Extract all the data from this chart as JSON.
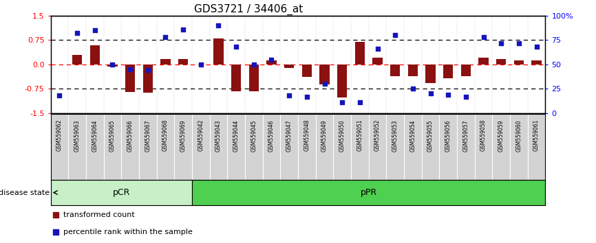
{
  "title": "GDS3721 / 34406_at",
  "samples": [
    "GSM559062",
    "GSM559063",
    "GSM559064",
    "GSM559065",
    "GSM559066",
    "GSM559067",
    "GSM559068",
    "GSM559069",
    "GSM559042",
    "GSM559043",
    "GSM559044",
    "GSM559045",
    "GSM559046",
    "GSM559047",
    "GSM559048",
    "GSM559049",
    "GSM559050",
    "GSM559051",
    "GSM559052",
    "GSM559053",
    "GSM559054",
    "GSM559055",
    "GSM559056",
    "GSM559057",
    "GSM559058",
    "GSM559059",
    "GSM559060",
    "GSM559061"
  ],
  "bar_values": [
    0.0,
    0.3,
    0.58,
    -0.07,
    -0.85,
    -0.88,
    0.17,
    0.17,
    0.0,
    0.8,
    -0.84,
    -0.84,
    0.13,
    -0.1,
    -0.38,
    -0.62,
    -1.02,
    0.7,
    0.2,
    -0.37,
    -0.37,
    -0.57,
    -0.42,
    -0.37,
    0.2,
    0.17,
    0.13,
    0.13
  ],
  "scatter_pct": [
    18,
    82,
    85,
    50,
    45,
    44,
    78,
    86,
    50,
    90,
    68,
    50,
    55,
    18,
    17,
    30,
    11,
    11,
    66,
    80,
    25,
    20,
    19,
    17,
    78,
    72,
    72,
    68
  ],
  "groups": [
    {
      "label": "pCR",
      "start": 0,
      "end": 8,
      "color": "#c8f0c8"
    },
    {
      "label": "pPR",
      "start": 8,
      "end": 28,
      "color": "#50d050"
    }
  ],
  "ylim_left": [
    -1.5,
    1.5
  ],
  "yticks_left": [
    -1.5,
    -0.75,
    0.0,
    0.75,
    1.5
  ],
  "yticks_right_pct": [
    0,
    25,
    50,
    75,
    100
  ],
  "hlines_dotted": [
    -0.75,
    0.75
  ],
  "hline_red": 0.0,
  "bar_color": "#8b1010",
  "scatter_color": "#1515bb",
  "bar_width": 0.55,
  "title_fontsize": 11,
  "legend_labels": [
    "transformed count",
    "percentile rank within the sample"
  ],
  "disease_state_label": "disease state",
  "xtick_bg": "#d3d3d3",
  "group_border_color": "#000000"
}
